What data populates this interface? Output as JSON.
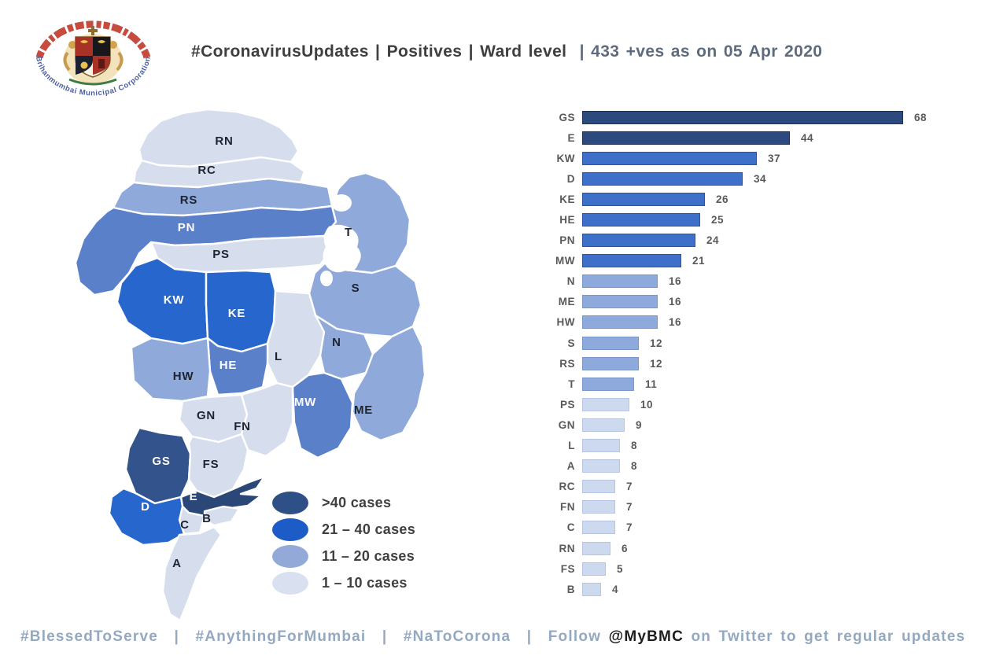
{
  "header": {
    "title_main": "#CoronavirusUpdates | Positives | Ward level",
    "title_sub": "| 433 +ves as on 05 Apr 2020"
  },
  "logo": {
    "top_text_devanagari": "बृहन्मुंबई महानगरपालिका",
    "bottom_text": "Brihanmumbai Municipal Corporation"
  },
  "map": {
    "wards": [
      {
        "code": "RN",
        "tone": "light"
      },
      {
        "code": "RC",
        "tone": "light"
      },
      {
        "code": "RS",
        "tone": "med"
      },
      {
        "code": "PN",
        "tone": "royal2"
      },
      {
        "code": "PS",
        "tone": "light"
      },
      {
        "code": "T",
        "tone": "med"
      },
      {
        "code": "S",
        "tone": "med"
      },
      {
        "code": "KW",
        "tone": "royal"
      },
      {
        "code": "KE",
        "tone": "royal"
      },
      {
        "code": "L",
        "tone": "light"
      },
      {
        "code": "N",
        "tone": "med"
      },
      {
        "code": "HE",
        "tone": "royal2"
      },
      {
        "code": "HW",
        "tone": "med"
      },
      {
        "code": "MW",
        "tone": "royal2"
      },
      {
        "code": "ME",
        "tone": "med"
      },
      {
        "code": "GN",
        "tone": "light"
      },
      {
        "code": "FN",
        "tone": "light"
      },
      {
        "code": "GS",
        "tone": "navy"
      },
      {
        "code": "FS",
        "tone": "light"
      },
      {
        "code": "E",
        "tone": "navy2"
      },
      {
        "code": "D",
        "tone": "royal"
      },
      {
        "code": "C",
        "tone": "light"
      },
      {
        "code": "B",
        "tone": "light"
      },
      {
        "code": "A",
        "tone": "light"
      }
    ]
  },
  "legend": {
    "items": [
      {
        "label": ">40 cases",
        "color": "#2f4f87"
      },
      {
        "label": "21 – 40 cases",
        "color": "#1d5cc6"
      },
      {
        "label": "11 – 20 cases",
        "color": "#93a9d8"
      },
      {
        "label": "1 – 10 cases",
        "color": "#d9e1f1"
      }
    ]
  },
  "chart_data": {
    "type": "bar",
    "orientation": "horizontal",
    "title": "",
    "xlabel": "",
    "ylabel": "",
    "xlim": [
      0,
      72
    ],
    "grid": false,
    "value_labels": true,
    "categories": [
      "GS",
      "E",
      "KW",
      "D",
      "KE",
      "HE",
      "PN",
      "MW",
      "N",
      "ME",
      "HW",
      "S",
      "RS",
      "T",
      "PS",
      "GN",
      "L",
      "A",
      "RC",
      "FN",
      "C",
      "RN",
      "FS",
      "B"
    ],
    "values": [
      68,
      44,
      37,
      34,
      26,
      25,
      24,
      21,
      16,
      16,
      16,
      12,
      12,
      11,
      10,
      9,
      8,
      8,
      7,
      7,
      7,
      6,
      5,
      4
    ],
    "color_buckets": [
      {
        "label": ">40 cases",
        "min": 41,
        "color": "#2c4a7e",
        "edge": "rgba(10,20,45,0.45)"
      },
      {
        "label": "21 – 40 cases",
        "min": 21,
        "color": "#3e6fc9",
        "edge": "rgba(20,50,110,0.45)"
      },
      {
        "label": "11 – 20 cases",
        "min": 11,
        "color": "#8ea9dc",
        "edge": "rgba(90,115,170,0.35)"
      },
      {
        "label": "1 – 10 cases",
        "min": 1,
        "color": "#ccd9ee",
        "edge": "rgba(140,160,200,0.35)"
      }
    ]
  },
  "palette": {
    "navy": "#33538d",
    "navy2": "#2b4777",
    "royal": "#2767cd",
    "royal2": "#537c0",
    "royal2_fix": "#5b80ca",
    "med": "#8ea9da",
    "light": "#d6deee",
    "lake": "#ffffff"
  },
  "footer": {
    "hashtag1": "#BlessedToServe",
    "hashtag2": "#AnythingForMumbai",
    "hashtag3": "#NaToCorona",
    "separator": "|",
    "follow_prefix": "Follow",
    "handle": "@MyBMC",
    "follow_suffix": "on Twitter to get regular updates"
  }
}
